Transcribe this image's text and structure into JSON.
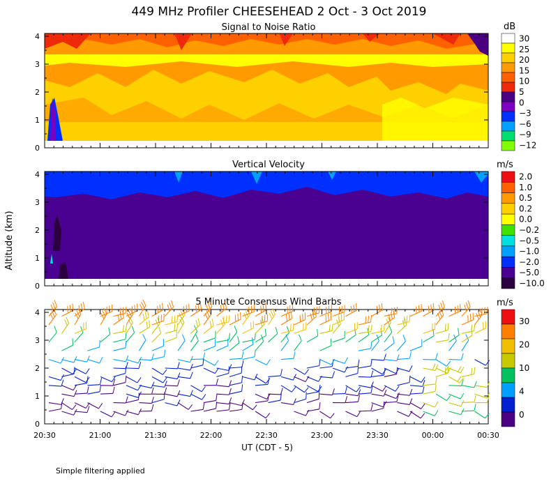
{
  "title": "449 MHz Profiler CHEESEHEAD  2 Oct -  3 Oct 2019",
  "ylabel": "Altitude (km)",
  "xlabel": "UT  (CDT - 5)",
  "x_ticks": [
    "20:30",
    "21:00",
    "21:30",
    "22:00",
    "22:30",
    "23:00",
    "23:30",
    "00:00",
    "00:30"
  ],
  "y_ticks": [
    "0",
    "1",
    "2",
    "3",
    "4"
  ],
  "footnote": "Simple filtering applied",
  "chart_data": [
    {
      "type": "heatmap",
      "title": "Signal to Noise Ratio",
      "unit": "dB",
      "ylim": [
        0,
        4.1
      ],
      "colorbar": {
        "labels": [
          "30",
          "25",
          "20",
          "15",
          "10",
          "5",
          "0",
          "−3",
          "−6",
          "−9",
          "−12"
        ],
        "colors": [
          "#ffffff",
          "#ffff00",
          "#ffd000",
          "#ff9a00",
          "#ff6000",
          "#ee2a0a",
          "#4a0080",
          "#7d00c0",
          "#0030ff",
          "#00a0ff",
          "#00e070",
          "#80ff00"
        ]
      },
      "description_rows": [
        {
          "alt_km": 4.0,
          "value_db": 15
        },
        {
          "alt_km": 3.0,
          "value_db": 25
        },
        {
          "alt_km": 2.0,
          "value_db": 15
        },
        {
          "alt_km": 1.0,
          "value_db": 20
        },
        {
          "alt_km": 0.3,
          "value_db": 20
        }
      ]
    },
    {
      "type": "heatmap",
      "title": "Vertical Velocity",
      "unit": "m/s",
      "ylim": [
        0,
        4.1
      ],
      "colorbar": {
        "labels": [
          "2.0",
          "1.0",
          "0.5",
          "0.2",
          "0.0",
          "−0.2",
          "−0.5",
          "−1.0",
          "−2.0",
          "−5.0",
          "−10.0"
        ],
        "colors": [
          "#ee1010",
          "#ff6000",
          "#ff9a00",
          "#ffd000",
          "#ffff00",
          "#40e000",
          "#00e0e0",
          "#00a0ff",
          "#0030ff",
          "#4a0090",
          "#2a0040"
        ]
      },
      "description_rows": [
        {
          "alt_km": 4.0,
          "value_ms": -2.0
        },
        {
          "alt_km": 3.5,
          "value_ms": -2.0
        },
        {
          "alt_km": 2.0,
          "value_ms": -5.0
        },
        {
          "alt_km": 0.3,
          "value_ms": -5.0
        }
      ]
    },
    {
      "type": "scatter",
      "title": "5 Minute Consensus Wind Barbs",
      "unit": "m/s",
      "ylim": [
        0,
        4.1
      ],
      "colorbar": {
        "labels": [
          "30",
          "20",
          "10",
          "4",
          "0"
        ],
        "colors": [
          "#ee1010",
          "#ff8000",
          "#f0c000",
          "#c8c800",
          "#00c060",
          "#00a0ff",
          "#0020d0",
          "#4a0080"
        ]
      },
      "speed_by_altitude": [
        {
          "alt_km": 4.0,
          "speed_ms": 20
        },
        {
          "alt_km": 3.5,
          "speed_ms": 18
        },
        {
          "alt_km": 3.0,
          "speed_ms": 10
        },
        {
          "alt_km": 2.5,
          "speed_ms": 6
        },
        {
          "alt_km": 2.0,
          "speed_ms": 3
        },
        {
          "alt_km": 1.0,
          "speed_ms": 2
        },
        {
          "alt_km": 0.5,
          "speed_ms": 1
        }
      ]
    }
  ]
}
